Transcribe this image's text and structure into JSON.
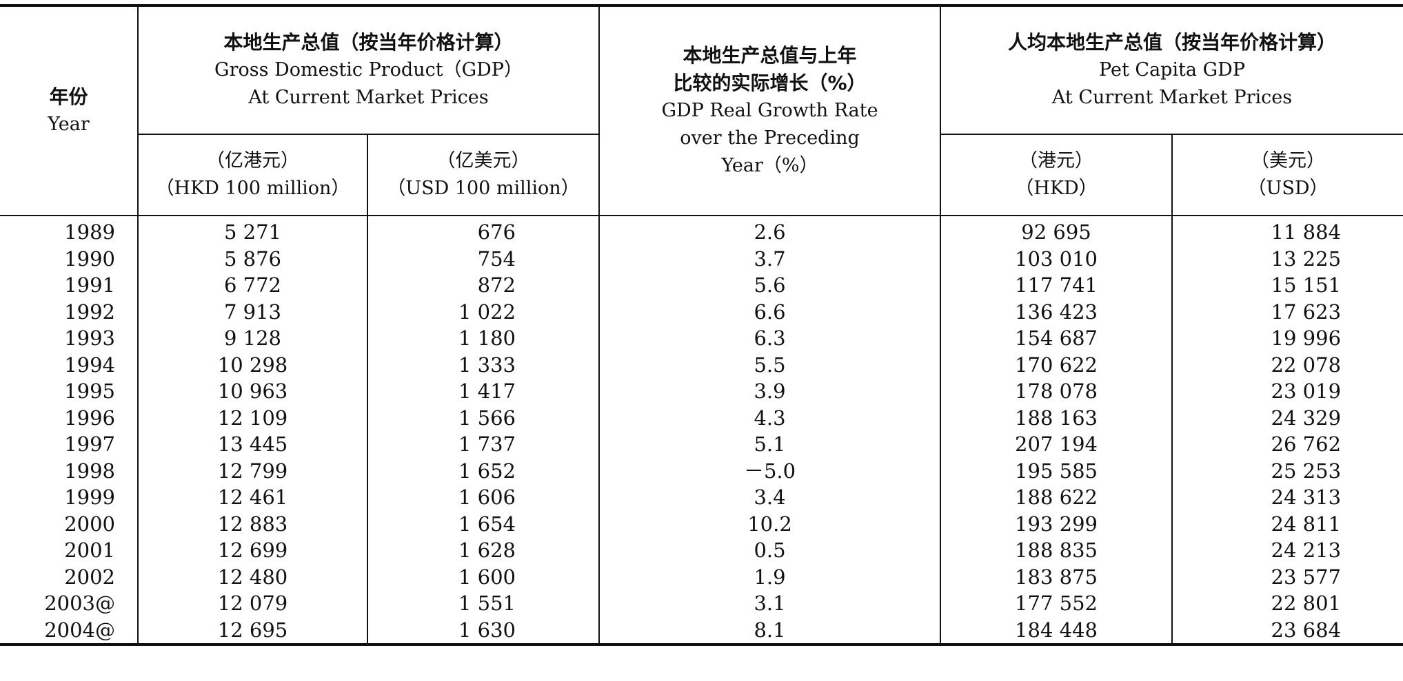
{
  "header": {
    "year": {
      "zh": "年份",
      "en": "Year"
    },
    "gdp": {
      "zh": "本地生产总值（按当年价格计算）",
      "en1": "Gross Domestic Product（GDP）",
      "en2": "At Current Market Prices",
      "hkd_zh": "（亿港元）",
      "hkd_en": "（HKD 100 million）",
      "usd_zh": "（亿美元）",
      "usd_en": "（USD 100 million）"
    },
    "growth": {
      "zh1": "本地生产总值与上年",
      "zh2": "比较的实际增长（%）",
      "en1": "GDP Real Growth Rate",
      "en2": "over the Preceding",
      "en3": "Year（%）"
    },
    "per_capita": {
      "zh": "人均本地生产总值（按当年价格计算）",
      "en1": "Pet Capita GDP",
      "en2": "At Current Market Prices",
      "hkd_zh": "（港元）",
      "hkd_en": "（HKD）",
      "usd_zh": "（美元）",
      "usd_en": "（USD）"
    }
  },
  "rows": [
    {
      "year": "1989",
      "gdp_hkd": "5 271",
      "gdp_usd": "676",
      "growth": "2.6",
      "pc_hkd": "92 695",
      "pc_usd": "11 884"
    },
    {
      "year": "1990",
      "gdp_hkd": "5 876",
      "gdp_usd": "754",
      "growth": "3.7",
      "pc_hkd": "103 010",
      "pc_usd": "13 225"
    },
    {
      "year": "1991",
      "gdp_hkd": "6 772",
      "gdp_usd": "872",
      "growth": "5.6",
      "pc_hkd": "117 741",
      "pc_usd": "15 151"
    },
    {
      "year": "1992",
      "gdp_hkd": "7 913",
      "gdp_usd": "1 022",
      "growth": "6.6",
      "pc_hkd": "136 423",
      "pc_usd": "17 623"
    },
    {
      "year": "1993",
      "gdp_hkd": "9 128",
      "gdp_usd": "1 180",
      "growth": "6.3",
      "pc_hkd": "154 687",
      "pc_usd": "19 996"
    },
    {
      "year": "1994",
      "gdp_hkd": "10 298",
      "gdp_usd": "1 333",
      "growth": "5.5",
      "pc_hkd": "170 622",
      "pc_usd": "22 078"
    },
    {
      "year": "1995",
      "gdp_hkd": "10 963",
      "gdp_usd": "1 417",
      "growth": "3.9",
      "pc_hkd": "178 078",
      "pc_usd": "23 019"
    },
    {
      "year": "1996",
      "gdp_hkd": "12 109",
      "gdp_usd": "1 566",
      "growth": "4.3",
      "pc_hkd": "188 163",
      "pc_usd": "24 329"
    },
    {
      "year": "1997",
      "gdp_hkd": "13 445",
      "gdp_usd": "1 737",
      "growth": "5.1",
      "pc_hkd": "207 194",
      "pc_usd": "26 762"
    },
    {
      "year": "1998",
      "gdp_hkd": "12 799",
      "gdp_usd": "1 652",
      "growth": "－5.0",
      "pc_hkd": "195 585",
      "pc_usd": "25 253"
    },
    {
      "year": "1999",
      "gdp_hkd": "12 461",
      "gdp_usd": "1 606",
      "growth": "3.4",
      "pc_hkd": "188 622",
      "pc_usd": "24 313"
    },
    {
      "year": "2000",
      "gdp_hkd": "12 883",
      "gdp_usd": "1 654",
      "growth": "10.2",
      "pc_hkd": "193 299",
      "pc_usd": "24 811"
    },
    {
      "year": "2001",
      "gdp_hkd": "12 699",
      "gdp_usd": "1 628",
      "growth": "0.5",
      "pc_hkd": "188 835",
      "pc_usd": "24 213"
    },
    {
      "year": "2002",
      "gdp_hkd": "12 480",
      "gdp_usd": "1 600",
      "growth": "1.9",
      "pc_hkd": "183 875",
      "pc_usd": "23 577"
    },
    {
      "year": "2003@",
      "gdp_hkd": "12 079",
      "gdp_usd": "1 551",
      "growth": "3.1",
      "pc_hkd": "177 552",
      "pc_usd": "22 801"
    },
    {
      "year": "2004@",
      "gdp_hkd": "12 695",
      "gdp_usd": "1 630",
      "growth": "8.1",
      "pc_hkd": "184 448",
      "pc_usd": "23 684"
    }
  ]
}
